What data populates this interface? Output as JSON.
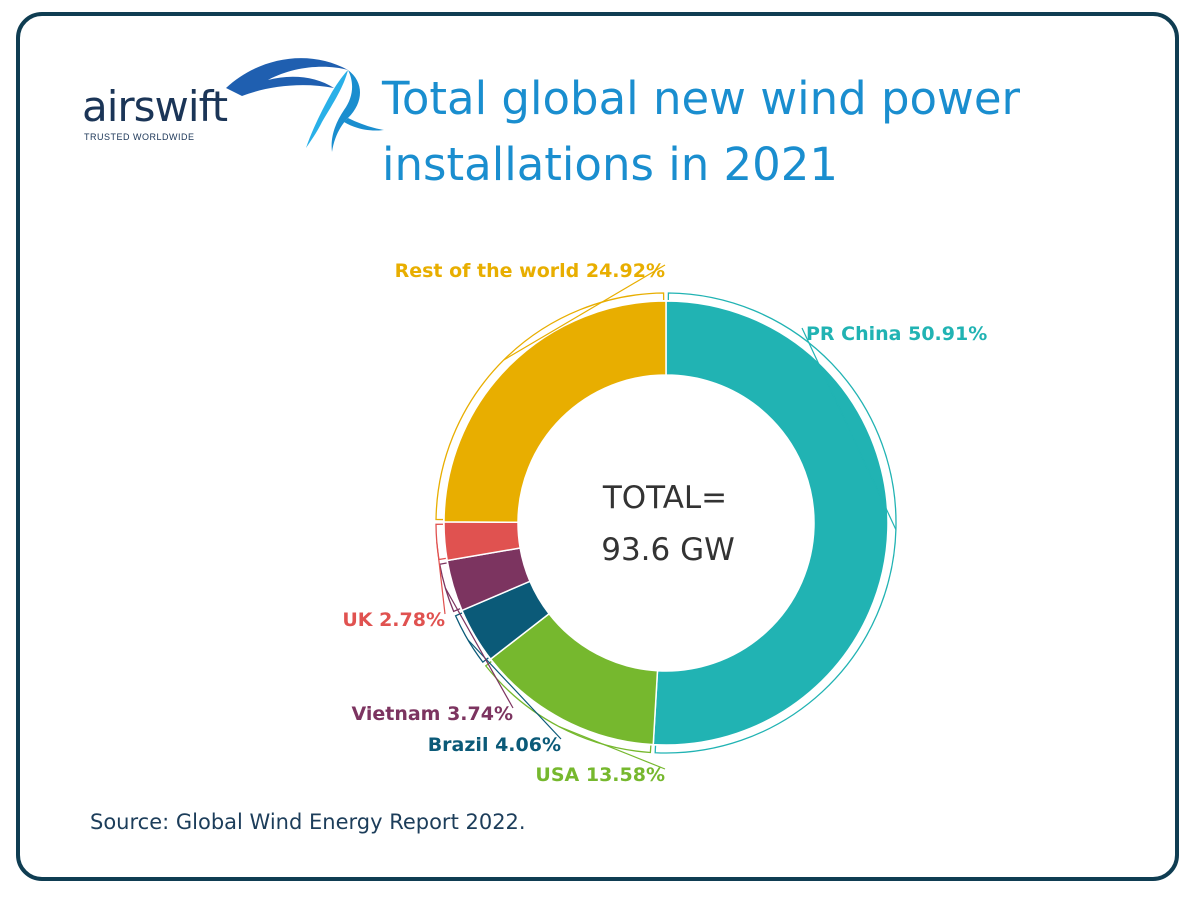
{
  "logo": {
    "word": "airswift",
    "tagline": "TRUSTED WORLDWIDE"
  },
  "title": "Total global new wind power installations in 2021",
  "source": "Source: Global Wind Energy Report 2022.",
  "colors": {
    "frame": "#0f3d52",
    "title": "#1a8ecf",
    "china": "#21b3b3",
    "usa": "#76b82e",
    "brazil": "#0b5a78",
    "vietnam": "#7c3460",
    "uk": "#e05250",
    "rest": "#e8ae00"
  },
  "chart_data": {
    "type": "pie",
    "donut": true,
    "center_label": [
      "TOTAL=",
      "93.6 GW"
    ],
    "slices": [
      {
        "name": "PR China",
        "value": 50.91,
        "label": "PR China 50.91%",
        "color": "#21b3b3"
      },
      {
        "name": "USA",
        "value": 13.58,
        "label": "USA 13.58%",
        "color": "#76b82e"
      },
      {
        "name": "Brazil",
        "value": 4.06,
        "label": "Brazil 4.06%",
        "color": "#0b5a78"
      },
      {
        "name": "Vietnam",
        "value": 3.74,
        "label": "Vietnam 3.74%",
        "color": "#7c3460"
      },
      {
        "name": "UK",
        "value": 2.78,
        "label": "UK 2.78%",
        "color": "#e05250"
      },
      {
        "name": "Rest of the world",
        "value": 24.92,
        "label": "Rest of the world 24.92%",
        "color": "#e8ae00"
      }
    ]
  }
}
